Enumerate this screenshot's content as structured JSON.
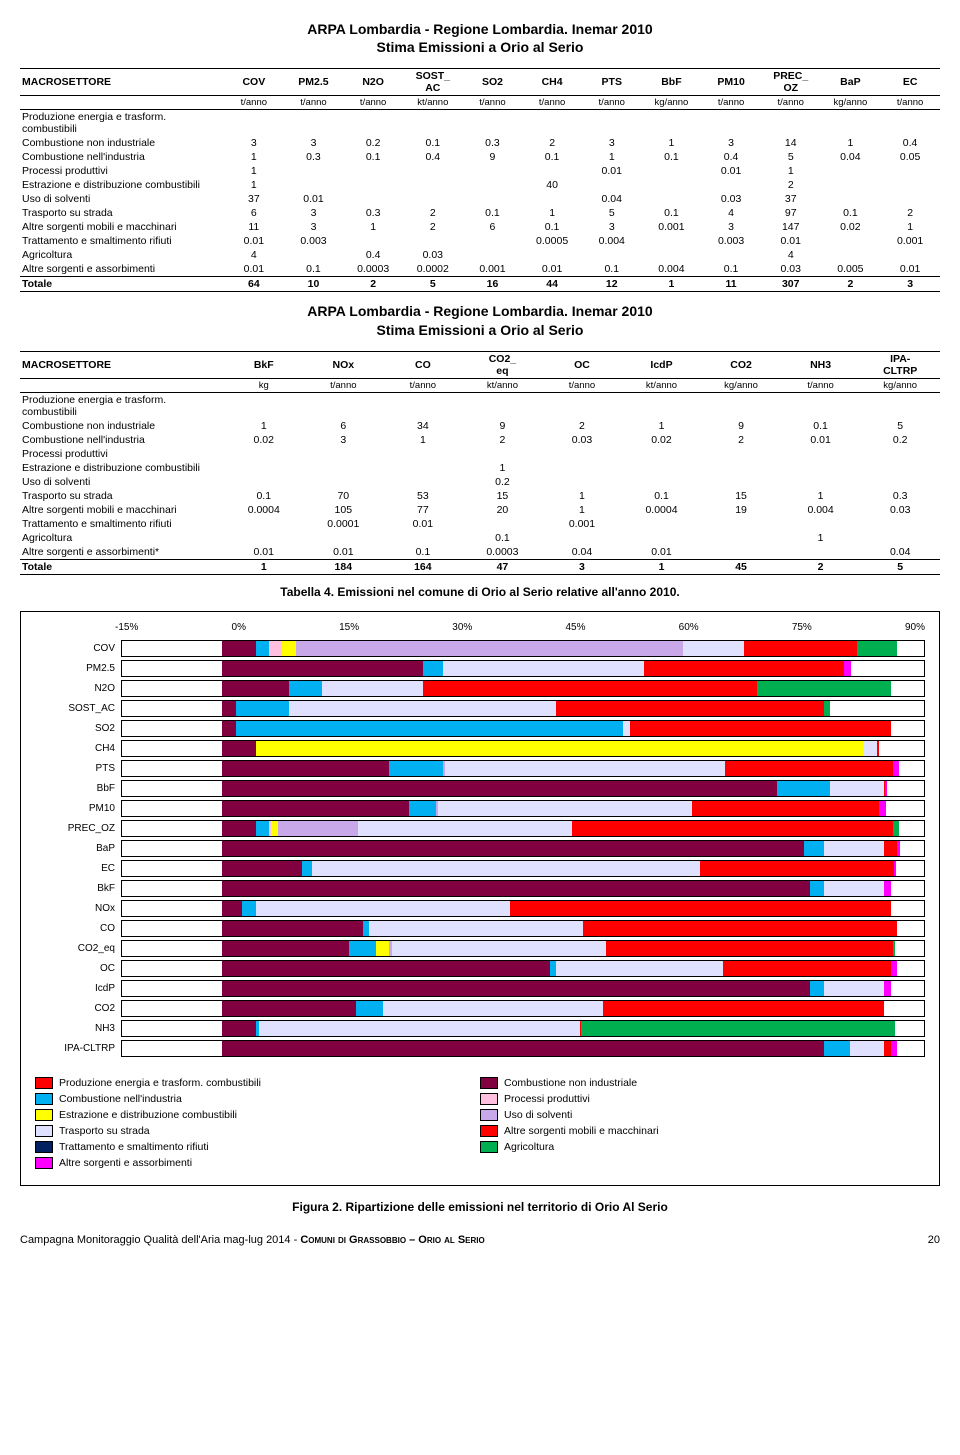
{
  "titles": {
    "t1_line1": "ARPA Lombardia - Regione Lombardia. Inemar 2010",
    "t1_line2": "Stima Emissioni a Orio al Serio",
    "t2_line1": "ARPA Lombardia - Regione Lombardia. Inemar 2010",
    "t2_line2": "Stima Emissioni a Orio al Serio",
    "tab4_caption": "Tabella 4. Emissioni nel comune di Orio al Serio relative all'anno 2010.",
    "fig2_caption": "Figura 2. Ripartizione delle emissioni nel territorio di Orio Al Serio",
    "macrosettore": "MACROSETTORE"
  },
  "t1": {
    "cols": [
      "COV",
      "PM2.5",
      "N2O",
      "SOST_AC",
      "SO2",
      "CH4",
      "PTS",
      "BbF",
      "PM10",
      "PREC_OZ",
      "BaP",
      "EC"
    ],
    "units": [
      "t/anno",
      "t/anno",
      "t/anno",
      "kt/anno",
      "t/anno",
      "t/anno",
      "t/anno",
      "kg/anno",
      "t/anno",
      "t/anno",
      "kg/anno",
      "t/anno"
    ],
    "rows": [
      {
        "label": "Produzione energia e trasform. combustibili",
        "v": [
          "",
          "",
          "",
          "",
          "",
          "",
          "",
          "",
          "",
          "",
          "",
          ""
        ]
      },
      {
        "label": "Combustione non industriale",
        "v": [
          "3",
          "3",
          "0.2",
          "0.1",
          "0.3",
          "2",
          "3",
          "1",
          "3",
          "14",
          "1",
          "0.4"
        ]
      },
      {
        "label": "Combustione nell'industria",
        "v": [
          "1",
          "0.3",
          "0.1",
          "0.4",
          "9",
          "0.1",
          "1",
          "0.1",
          "0.4",
          "5",
          "0.04",
          "0.05"
        ]
      },
      {
        "label": "Processi produttivi",
        "v": [
          "1",
          "",
          "",
          "",
          "",
          "",
          "0.01",
          "",
          "0.01",
          "1",
          "",
          ""
        ]
      },
      {
        "label": "Estrazione e distribuzione combustibili",
        "v": [
          "1",
          "",
          "",
          "",
          "",
          "40",
          "",
          "",
          "",
          "2",
          "",
          ""
        ]
      },
      {
        "label": "Uso di solventi",
        "v": [
          "37",
          "0.01",
          "",
          "",
          "",
          "",
          "0.04",
          "",
          "0.03",
          "37",
          "",
          ""
        ]
      },
      {
        "label": "Trasporto su strada",
        "v": [
          "6",
          "3",
          "0.3",
          "2",
          "0.1",
          "1",
          "5",
          "0.1",
          "4",
          "97",
          "0.1",
          "2"
        ]
      },
      {
        "label": "Altre sorgenti mobili e macchinari",
        "v": [
          "11",
          "3",
          "1",
          "2",
          "6",
          "0.1",
          "3",
          "0.001",
          "3",
          "147",
          "0.02",
          "1"
        ]
      },
      {
        "label": "Trattamento e smaltimento rifiuti",
        "v": [
          "0.01",
          "0.003",
          "",
          "",
          "",
          "0.0005",
          "0.004",
          "",
          "0.003",
          "0.01",
          "",
          "0.001"
        ]
      },
      {
        "label": "Agricoltura",
        "v": [
          "4",
          "",
          "0.4",
          "0.03",
          "",
          "",
          "",
          "",
          "",
          "4",
          "",
          ""
        ]
      },
      {
        "label": "Altre sorgenti e assorbimenti",
        "v": [
          "0.01",
          "0.1",
          "0.0003",
          "0.0002",
          "0.001",
          "0.01",
          "0.1",
          "0.004",
          "0.1",
          "0.03",
          "0.005",
          "0.01"
        ]
      }
    ],
    "total": {
      "label": "Totale",
      "v": [
        "64",
        "10",
        "2",
        "5",
        "16",
        "44",
        "12",
        "1",
        "11",
        "307",
        "2",
        "3"
      ]
    }
  },
  "t2": {
    "cols": [
      "BkF",
      "NOx",
      "CO",
      "CO2_eq",
      "OC",
      "IcdP",
      "CO2",
      "NH3",
      "IPA-CLTRP"
    ],
    "units": [
      "kg",
      "t/anno",
      "t/anno",
      "kt/anno",
      "t/anno",
      "kt/anno",
      "kg/anno",
      "t/anno",
      "kg/anno"
    ],
    "rows": [
      {
        "label": "Produzione energia e trasform. combustibili",
        "v": [
          "",
          "",
          "",
          "",
          "",
          "",
          "",
          "",
          ""
        ]
      },
      {
        "label": "Combustione non industriale",
        "v": [
          "1",
          "6",
          "34",
          "9",
          "2",
          "1",
          "9",
          "0.1",
          "5"
        ]
      },
      {
        "label": "Combustione nell'industria",
        "v": [
          "0.02",
          "3",
          "1",
          "2",
          "0.03",
          "0.02",
          "2",
          "0.01",
          "0.2"
        ]
      },
      {
        "label": "Processi produttivi",
        "v": [
          "",
          "",
          "",
          "",
          "",
          "",
          "",
          "",
          ""
        ]
      },
      {
        "label": "Estrazione e distribuzione combustibili",
        "v": [
          "",
          "",
          "",
          "1",
          "",
          "",
          "",
          "",
          ""
        ]
      },
      {
        "label": "Uso di solventi",
        "v": [
          "",
          "",
          "",
          "0.2",
          "",
          "",
          "",
          "",
          ""
        ]
      },
      {
        "label": "Trasporto su strada",
        "v": [
          "0.1",
          "70",
          "53",
          "15",
          "1",
          "0.1",
          "15",
          "1",
          "0.3"
        ]
      },
      {
        "label": "Altre sorgenti mobili e macchinari",
        "v": [
          "0.0004",
          "105",
          "77",
          "20",
          "1",
          "0.0004",
          "19",
          "0.004",
          "0.03"
        ]
      },
      {
        "label": "Trattamento e smaltimento rifiuti",
        "v": [
          "",
          "0.0001",
          "0.01",
          "",
          "0.001",
          "",
          "",
          "",
          ""
        ]
      },
      {
        "label": "Agricoltura",
        "v": [
          "",
          "",
          "",
          "0.1",
          "",
          "",
          "",
          "1",
          ""
        ]
      },
      {
        "label": "Altre sorgenti e assorbimenti*",
        "v": [
          "0.01",
          "0.01",
          "0.1",
          "0.0003",
          "0.04",
          "0.01",
          "",
          "",
          "0.04"
        ]
      }
    ],
    "total": {
      "label": "Totale",
      "v": [
        "1",
        "184",
        "164",
        "47",
        "3",
        "1",
        "45",
        "2",
        "5"
      ]
    }
  },
  "chart": {
    "type": "stacked-bar-horizontal",
    "xticks": [
      "-15%",
      "0%",
      "15%",
      "30%",
      "45%",
      "60%",
      "75%",
      "90%"
    ],
    "xlim": [
      -15,
      105
    ],
    "background_color": "#ffffff",
    "series_colors": {
      "Produzione energia e trasform. combustibili": "#ff0000",
      "Combustione non industriale": "#800040",
      "Combustione nell'industria": "#00b0f0",
      "Processi produttivi": "#ffc0e0",
      "Estrazione e distribuzione combustibili": "#ffff00",
      "Uso di solventi": "#c8a8e8",
      "Trasporto su strada": "#e0e0ff",
      "Altre sorgenti mobili e macchinari": "#ff0000",
      "Trattamento e smaltimento rifiuti": "#002060",
      "Agricoltura": "#00b050",
      "Altre sorgenti e assorbimenti": "#ff00ff"
    },
    "categories": [
      "COV",
      "PM2.5",
      "N2O",
      "SOST_AC",
      "SO2",
      "CH4",
      "PTS",
      "BbF",
      "PM10",
      "PREC_OZ",
      "BaP",
      "EC",
      "BkF",
      "NOx",
      "CO",
      "CO2_eq",
      "OC",
      "IcdP",
      "CO2",
      "NH3",
      "IPA-CLTRP"
    ],
    "stacks": {
      "COV": {
        "pos": [
          [
            "Combustione non industriale",
            5
          ],
          [
            "Combustione nell'industria",
            2
          ],
          [
            "Processi produttivi",
            2
          ],
          [
            "Estrazione e distribuzione combustibili",
            2
          ],
          [
            "Uso di solventi",
            58
          ],
          [
            "Trasporto su strada",
            9
          ],
          [
            "Altre sorgenti mobili e macchinari",
            17
          ],
          [
            "Agricoltura",
            6
          ]
        ]
      },
      "PM2.5": {
        "pos": [
          [
            "Combustione non industriale",
            30
          ],
          [
            "Combustione nell'industria",
            3
          ],
          [
            "Uso di solventi",
            0.1
          ],
          [
            "Trasporto su strada",
            30
          ],
          [
            "Altre sorgenti mobili e macchinari",
            30
          ],
          [
            "Altre sorgenti e assorbimenti",
            1
          ]
        ]
      },
      "N2O": {
        "pos": [
          [
            "Combustione non industriale",
            10
          ],
          [
            "Combustione nell'industria",
            5
          ],
          [
            "Trasporto su strada",
            15
          ],
          [
            "Altre sorgenti mobili e macchinari",
            50
          ],
          [
            "Agricoltura",
            20
          ]
        ]
      },
      "SOST_AC": {
        "pos": [
          [
            "Combustione non industriale",
            2
          ],
          [
            "Combustione nell'industria",
            8
          ],
          [
            "Trasporto su strada",
            40
          ],
          [
            "Altre sorgenti mobili e macchinari",
            40
          ],
          [
            "Agricoltura",
            1
          ]
        ]
      },
      "SO2": {
        "pos": [
          [
            "Combustione non industriale",
            2
          ],
          [
            "Combustione nell'industria",
            58
          ],
          [
            "Trasporto su strada",
            1
          ],
          [
            "Altre sorgenti mobili e macchinari",
            39
          ]
        ]
      },
      "CH4": {
        "pos": [
          [
            "Combustione non industriale",
            5
          ],
          [
            "Estrazione e distribuzione combustibili",
            91
          ],
          [
            "Trasporto su strada",
            2
          ],
          [
            "Altre sorgenti mobili e macchinari",
            0.2
          ]
        ]
      },
      "PTS": {
        "pos": [
          [
            "Combustione non industriale",
            25
          ],
          [
            "Combustione nell'industria",
            8
          ],
          [
            "Uso di solventi",
            0.3
          ],
          [
            "Trasporto su strada",
            42
          ],
          [
            "Altre sorgenti mobili e macchinari",
            25
          ],
          [
            "Altre sorgenti e assorbimenti",
            1
          ]
        ]
      },
      "BbF": {
        "pos": [
          [
            "Combustione non industriale",
            83
          ],
          [
            "Combustione nell'industria",
            8
          ],
          [
            "Trasporto su strada",
            8
          ],
          [
            "Altre sorgenti mobili e macchinari",
            0.1
          ],
          [
            "Altre sorgenti e assorbimenti",
            0.3
          ]
        ]
      },
      "PM10": {
        "pos": [
          [
            "Combustione non industriale",
            28
          ],
          [
            "Combustione nell'industria",
            4
          ],
          [
            "Uso di solventi",
            0.3
          ],
          [
            "Trasporto su strada",
            38
          ],
          [
            "Altre sorgenti mobili e macchinari",
            28
          ],
          [
            "Altre sorgenti e assorbimenti",
            1
          ]
        ]
      },
      "PREC_OZ": {
        "pos": [
          [
            "Combustione non industriale",
            5
          ],
          [
            "Combustione nell'industria",
            2
          ],
          [
            "Processi produttivi",
            0.3
          ],
          [
            "Estrazione e distribuzione combustibili",
            1
          ],
          [
            "Uso di solventi",
            12
          ],
          [
            "Trasporto su strada",
            32
          ],
          [
            "Altre sorgenti mobili e macchinari",
            48
          ],
          [
            "Agricoltura",
            1
          ]
        ]
      },
      "BaP": {
        "pos": [
          [
            "Combustione non industriale",
            87
          ],
          [
            "Combustione nell'industria",
            3
          ],
          [
            "Trasporto su strada",
            9
          ],
          [
            "Altre sorgenti mobili e macchinari",
            2
          ],
          [
            "Altre sorgenti e assorbimenti",
            0.4
          ]
        ]
      },
      "EC": {
        "pos": [
          [
            "Combustione non industriale",
            12
          ],
          [
            "Combustione nell'industria",
            1.5
          ],
          [
            "Trasporto su strada",
            58
          ],
          [
            "Altre sorgenti mobili e macchinari",
            29
          ],
          [
            "Altre sorgenti e assorbimenti",
            0.3
          ]
        ]
      },
      "BkF": {
        "pos": [
          [
            "Combustione non industriale",
            88
          ],
          [
            "Combustione nell'industria",
            2
          ],
          [
            "Trasporto su strada",
            9
          ],
          [
            "Altre sorgenti e assorbimenti",
            1
          ]
        ]
      },
      "NOx": {
        "pos": [
          [
            "Combustione non industriale",
            3
          ],
          [
            "Combustione nell'industria",
            2
          ],
          [
            "Trasporto su strada",
            38
          ],
          [
            "Altre sorgenti mobili e macchinari",
            57
          ]
        ]
      },
      "CO": {
        "pos": [
          [
            "Combustione non industriale",
            21
          ],
          [
            "Combustione nell'industria",
            1
          ],
          [
            "Trasporto su strada",
            32
          ],
          [
            "Altre sorgenti mobili e macchinari",
            47
          ]
        ]
      },
      "CO2_eq": {
        "pos": [
          [
            "Combustione non industriale",
            19
          ],
          [
            "Combustione nell'industria",
            4
          ],
          [
            "Estrazione e distribuzione combustibili",
            2
          ],
          [
            "Uso di solventi",
            0.4
          ],
          [
            "Trasporto su strada",
            32
          ],
          [
            "Altre sorgenti mobili e macchinari",
            43
          ],
          [
            "Agricoltura",
            0.2
          ]
        ]
      },
      "OC": {
        "pos": [
          [
            "Combustione non industriale",
            49
          ],
          [
            "Combustione nell'industria",
            1
          ],
          [
            "Trasporto su strada",
            25
          ],
          [
            "Altre sorgenti mobili e macchinari",
            25
          ],
          [
            "Altre sorgenti e assorbimenti",
            1
          ]
        ]
      },
      "IcdP": {
        "pos": [
          [
            "Combustione non industriale",
            88
          ],
          [
            "Combustione nell'industria",
            2
          ],
          [
            "Trasporto su strada",
            9
          ],
          [
            "Altre sorgenti e assorbimenti",
            1
          ]
        ]
      },
      "CO2": {
        "pos": [
          [
            "Combustione non industriale",
            20
          ],
          [
            "Combustione nell'industria",
            4
          ],
          [
            "Trasporto su strada",
            33
          ],
          [
            "Altre sorgenti mobili e macchinari",
            42
          ]
        ]
      },
      "NH3": {
        "pos": [
          [
            "Combustione non industriale",
            5
          ],
          [
            "Combustione nell'industria",
            0.5
          ],
          [
            "Trasporto su strada",
            48
          ],
          [
            "Altre sorgenti mobili e macchinari",
            0.2
          ],
          [
            "Agricoltura",
            47
          ]
        ]
      },
      "IPA-CLTRP": {
        "pos": [
          [
            "Combustione non industriale",
            90
          ],
          [
            "Combustione nell'industria",
            4
          ],
          [
            "Trasporto su strada",
            5
          ],
          [
            "Altre sorgenti mobili e macchinari",
            1
          ],
          [
            "Altre sorgenti e assorbimenti",
            1
          ]
        ]
      }
    },
    "legend": [
      "Produzione energia e trasform. combustibili",
      "Combustione non industriale",
      "Combustione nell'industria",
      "Processi produttivi",
      "Estrazione e distribuzione combustibili",
      "Uso di solventi",
      "Trasporto su strada",
      "Altre sorgenti mobili e macchinari",
      "Trattamento e smaltimento rifiuti",
      "Agricoltura",
      "Altre sorgenti e assorbimenti"
    ]
  },
  "footer": {
    "left_a": "Campagna Monitoraggio Qualità dell'Aria mag-lug 2014 - ",
    "left_b": "Comuni di Grassobbio – Orio al Serio",
    "page": "20"
  }
}
